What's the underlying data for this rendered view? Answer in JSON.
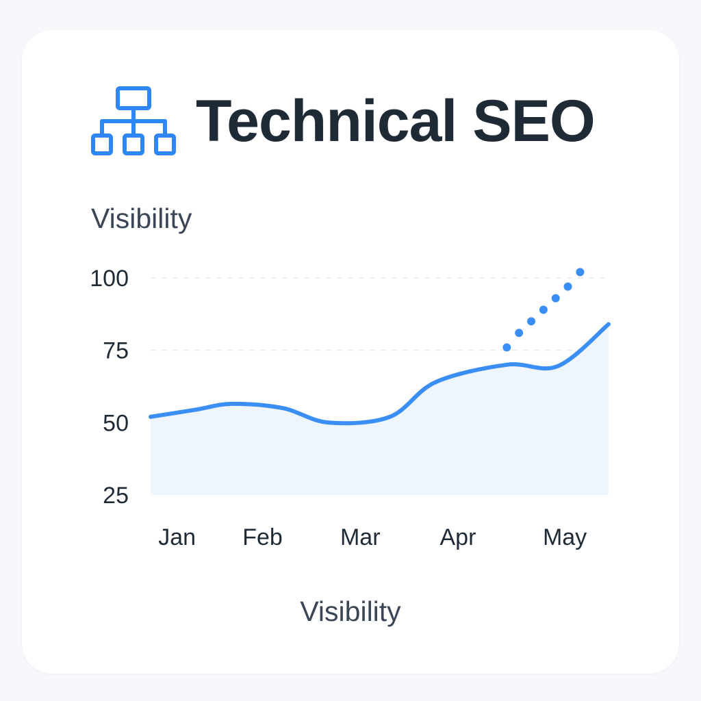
{
  "header": {
    "title": "Technical SEO",
    "icon": "sitemap-icon",
    "icon_color": "#2f86f6"
  },
  "chart_data": {
    "type": "area",
    "ylabel": "Visibility",
    "xlabel": "Visibility",
    "categories": [
      "Jan",
      "Feb",
      "Mar",
      "Apr",
      "May"
    ],
    "yticks": [
      100,
      75,
      50,
      25
    ],
    "ylim": [
      25,
      100
    ],
    "grid": true,
    "series": [
      {
        "x": [
          0.0,
          0.45,
          0.8,
          1.3,
          1.75,
          2.35,
          2.8,
          3.5,
          4.0,
          4.5
        ],
        "values": [
          52,
          54.5,
          56.5,
          55,
          50,
          52,
          64,
          70,
          69.5,
          84
        ]
      }
    ],
    "projection": {
      "x": [
        3.5,
        3.62,
        3.74,
        3.86,
        3.98,
        4.1,
        4.22
      ],
      "values": [
        76,
        81,
        85,
        89,
        93,
        97,
        102
      ]
    },
    "colors": {
      "line": "#3a8ef5",
      "fill": "#eef5fd",
      "grid": "#e4e9f0",
      "projection": "#3a8ef5"
    }
  }
}
